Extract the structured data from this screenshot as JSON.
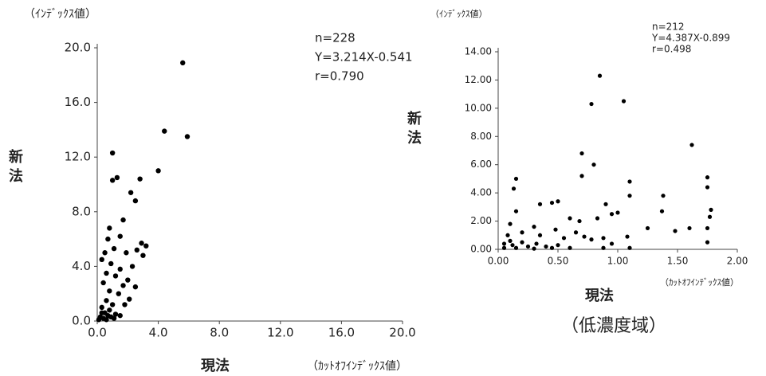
{
  "chart_data": [
    {
      "type": "scatter",
      "y_unit": "（ｲﾝﾃﾞｯｸｽ値）",
      "stats": [
        "n=228",
        "Y=3.214X-0.541",
        "r=0.790"
      ],
      "ylabel": "新法",
      "xlabel": "現法",
      "x_unit": "（ｶｯﾄｵﾌｲﾝﾃﾞｯｸｽ値）",
      "color": "#000000",
      "xlim": [
        0,
        20
      ],
      "ylim": [
        0,
        20
      ],
      "xticks": [
        {
          "value": 0,
          "label": "0.0"
        },
        {
          "value": 4,
          "label": "4.0"
        },
        {
          "value": 8,
          "label": "8.0"
        },
        {
          "value": 12,
          "label": "12.0"
        },
        {
          "value": 16,
          "label": "16.0"
        },
        {
          "value": 20,
          "label": "20.0"
        }
      ],
      "yticks": [
        {
          "value": 0,
          "label": "0.0"
        },
        {
          "value": 4,
          "label": "4.0"
        },
        {
          "value": 8,
          "label": "8.0"
        },
        {
          "value": 12,
          "label": "12.0"
        },
        {
          "value": 16,
          "label": "16.0"
        },
        {
          "value": 20,
          "label": "20.0"
        }
      ],
      "x": [
        5.6,
        5.9,
        4.4,
        4.0,
        1.0,
        1.3,
        1.0,
        2.8,
        2.2,
        2.5,
        1.7,
        0.8,
        0.7,
        1.5,
        3.2,
        2.9,
        2.6,
        3.0,
        0.5,
        1.1,
        1.9,
        0.3,
        0.9,
        2.3,
        1.5,
        0.6,
        1.2,
        2.0,
        2.5,
        0.4,
        1.7,
        0.8,
        1.4,
        2.1,
        0.6,
        1.0,
        1.8,
        0.3,
        0.5,
        0.8,
        1.2,
        0.2,
        0.4,
        0.6,
        0.9,
        1.5,
        0.1,
        0.3,
        0.7,
        1.1
      ],
      "values": [
        18.9,
        13.5,
        13.9,
        11.0,
        12.3,
        10.5,
        10.3,
        10.4,
        9.4,
        8.8,
        7.4,
        6.8,
        6.0,
        6.2,
        5.5,
        5.7,
        5.2,
        4.8,
        5.0,
        5.3,
        5.0,
        4.5,
        4.2,
        4.0,
        3.8,
        3.5,
        3.3,
        3.0,
        2.5,
        2.8,
        2.6,
        2.2,
        2.0,
        1.6,
        1.5,
        1.2,
        1.2,
        1.0,
        0.6,
        0.8,
        0.5,
        0.3,
        0.2,
        0.1,
        0.3,
        0.4,
        0.1,
        0.6,
        0.4,
        0.2
      ]
    },
    {
      "type": "scatter",
      "y_unit": "（ｲﾝﾃﾞｯｸｽ値）",
      "stats": [
        "n=212",
        "Y=4.387X-0.899",
        "r=0.498"
      ],
      "ylabel": "新法",
      "xlabel": "現法",
      "x_unit": "（ｶｯﾄｵﾌｲﾝﾃﾞｯｸｽ値）",
      "subtitle": "（低濃度域）",
      "color": "#000000",
      "xlim": [
        0,
        2
      ],
      "ylim": [
        0,
        14
      ],
      "xticks": [
        {
          "value": 0,
          "label": "0.00"
        },
        {
          "value": 0.5,
          "label": "0.50"
        },
        {
          "value": 1,
          "label": "1.00"
        },
        {
          "value": 1.5,
          "label": "1.50"
        },
        {
          "value": 2,
          "label": "2.00"
        }
      ],
      "yticks": [
        {
          "value": 0,
          "label": "0.00"
        },
        {
          "value": 2,
          "label": "2.00"
        },
        {
          "value": 4,
          "label": "4.00"
        },
        {
          "value": 6,
          "label": "6.00"
        },
        {
          "value": 8,
          "label": "8.00"
        },
        {
          "value": 10,
          "label": "10.00"
        },
        {
          "value": 12,
          "label": "12.00"
        },
        {
          "value": 14,
          "label": "14.00"
        }
      ],
      "x": [
        0.85,
        0.78,
        1.05,
        1.62,
        0.7,
        0.8,
        1.75,
        0.15,
        0.7,
        1.1,
        0.13,
        1.75,
        1.38,
        1.1,
        0.5,
        0.45,
        0.35,
        0.9,
        1.0,
        1.78,
        0.15,
        0.6,
        0.68,
        0.83,
        0.95,
        1.37,
        1.77,
        0.1,
        0.3,
        0.48,
        0.65,
        1.25,
        1.48,
        1.6,
        1.75,
        0.08,
        0.2,
        0.35,
        0.55,
        0.72,
        0.78,
        0.88,
        1.08,
        1.75,
        0.05,
        0.12,
        0.2,
        0.25,
        0.32,
        0.4,
        0.45,
        0.5,
        0.6,
        0.15,
        0.05,
        0.95,
        1.1,
        0.88,
        0.3,
        0.1
      ],
      "values": [
        12.3,
        10.3,
        10.5,
        7.4,
        6.8,
        6.0,
        5.1,
        5.0,
        5.2,
        4.8,
        4.3,
        4.4,
        3.8,
        3.8,
        3.4,
        3.3,
        3.2,
        3.2,
        2.6,
        2.8,
        2.7,
        2.2,
        2.0,
        2.2,
        2.5,
        2.7,
        2.3,
        1.8,
        1.6,
        1.4,
        1.2,
        1.5,
        1.3,
        1.5,
        1.5,
        1.0,
        1.2,
        1.0,
        0.8,
        0.9,
        0.7,
        0.8,
        0.9,
        0.5,
        0.4,
        0.3,
        0.5,
        0.2,
        0.4,
        0.2,
        0.1,
        0.3,
        0.1,
        0.1,
        0.1,
        0.4,
        0.1,
        0.1,
        0.05,
        0.6
      ]
    }
  ]
}
